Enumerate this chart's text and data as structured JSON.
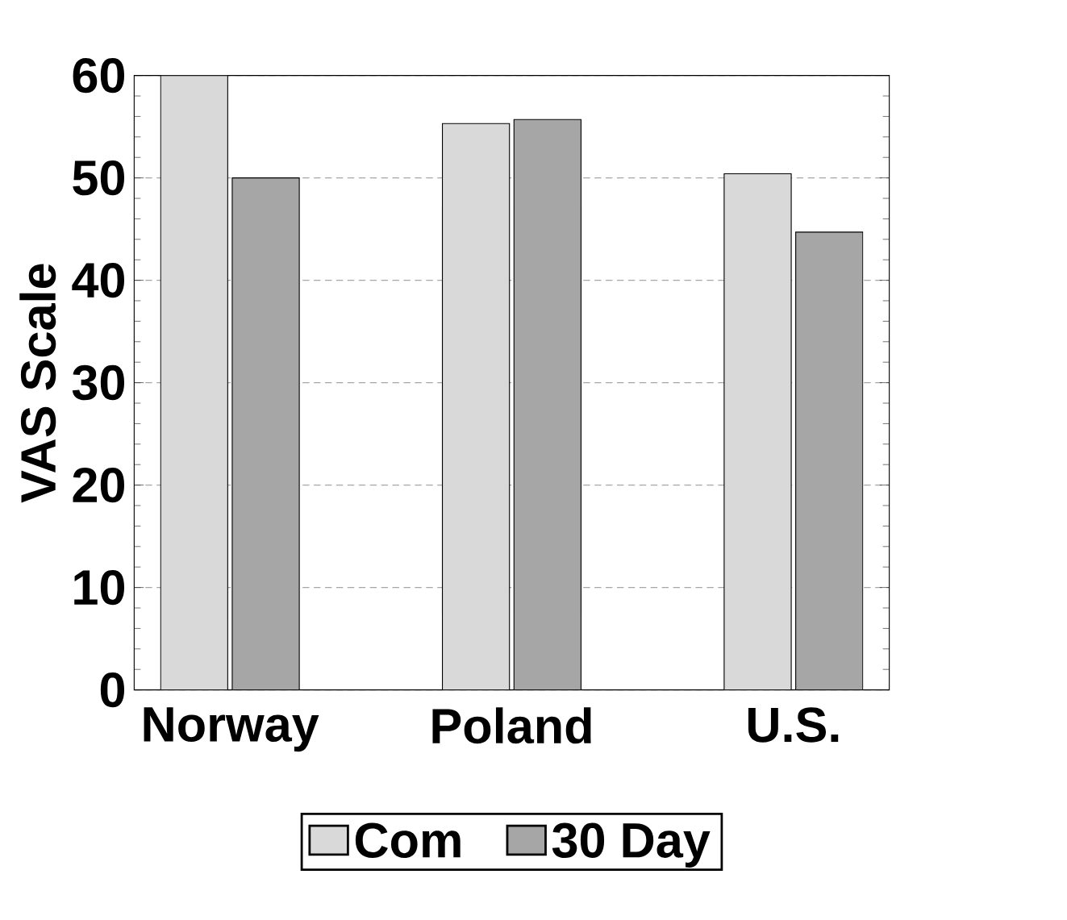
{
  "chart_data": {
    "type": "bar",
    "ylabel": "VAS Scale",
    "categories": [
      "Norway",
      "Poland",
      "U.S."
    ],
    "series": [
      {
        "name": "Com",
        "color": "#d9d9d9",
        "values": [
          60,
          55.3,
          50.4
        ]
      },
      {
        "name": "30  Day",
        "color": "#a6a6a6",
        "values": [
          50,
          55.7,
          44.7
        ]
      }
    ],
    "ylim": [
      0,
      60
    ],
    "yticks": [
      0,
      10,
      20,
      30,
      40,
      50,
      60
    ],
    "grid": "y",
    "legend": "bottom"
  }
}
